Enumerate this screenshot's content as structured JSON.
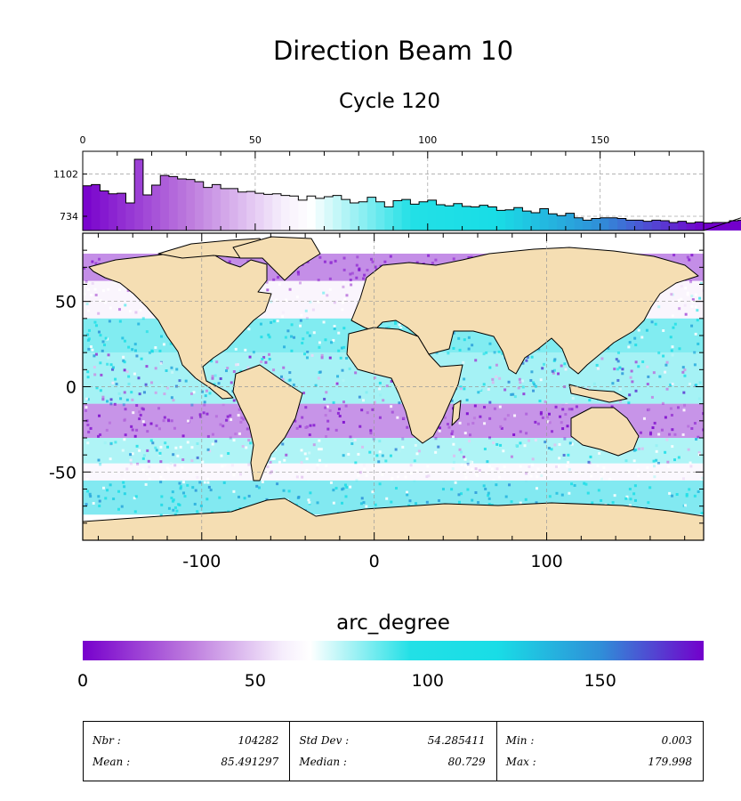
{
  "chart_data": [
    {
      "type": "bar",
      "role": "histogram",
      "x_ticks": [
        0,
        50,
        100,
        150
      ],
      "y_ticks": [
        734,
        1102
      ],
      "xlim": [
        0,
        180
      ],
      "bin_width": 2.5,
      "values": [
        1000,
        1010,
        955,
        930,
        935,
        850,
        1230,
        920,
        1005,
        1090,
        1080,
        1060,
        1055,
        1035,
        985,
        1010,
        975,
        975,
        945,
        950,
        935,
        925,
        930,
        915,
        910,
        875,
        910,
        890,
        905,
        915,
        880,
        850,
        860,
        900,
        860,
        815,
        870,
        880,
        840,
        860,
        875,
        835,
        825,
        845,
        820,
        815,
        830,
        815,
        785,
        790,
        810,
        780,
        765,
        800,
        755,
        740,
        760,
        720,
        700,
        715,
        720,
        720,
        715,
        700,
        700,
        690,
        700,
        695,
        680,
        690,
        675,
        685,
        675,
        680,
        680,
        695,
        700,
        690,
        700,
        705,
        745,
        805,
        870,
        890,
        965,
        925,
        1050,
        1030,
        1060,
        1070
      ],
      "colormap_stops": [
        {
          "v": 0,
          "color": "#7700cc"
        },
        {
          "v": 30,
          "color": "#bb77dd"
        },
        {
          "v": 58,
          "color": "#f6eefc"
        },
        {
          "v": 66,
          "color": "#ffffff"
        },
        {
          "v": 95,
          "color": "#22e0e6"
        },
        {
          "v": 120,
          "color": "#19dde6"
        },
        {
          "v": 150,
          "color": "#2f8fd8"
        },
        {
          "v": 180,
          "color": "#7300cc"
        }
      ]
    },
    {
      "type": "scatter",
      "role": "geographic map",
      "title": "Direction Beam 10",
      "subtitle": "Cycle 120",
      "x_ticks": [
        -100,
        0,
        100
      ],
      "y_ticks": [
        50,
        0,
        -50
      ],
      "xlim": [
        -169,
        191
      ],
      "ylim": [
        -90,
        90
      ],
      "land_color": "#f5deb3",
      "colorbar": {
        "label": "arc_degree",
        "ticks": [
          0,
          50,
          100,
          150
        ],
        "range": [
          0,
          180
        ]
      }
    }
  ],
  "stats": {
    "col1": [
      {
        "label": "Nbr :",
        "value": "104282"
      },
      {
        "label": "Mean :",
        "value": "85.491297"
      }
    ],
    "col2": [
      {
        "label": "Std Dev :",
        "value": "54.285411"
      },
      {
        "label": "Median :",
        "value": "80.729"
      }
    ],
    "col3": [
      {
        "label": "Min :",
        "value": "0.003"
      },
      {
        "label": "Max :",
        "value": "179.998"
      }
    ]
  }
}
